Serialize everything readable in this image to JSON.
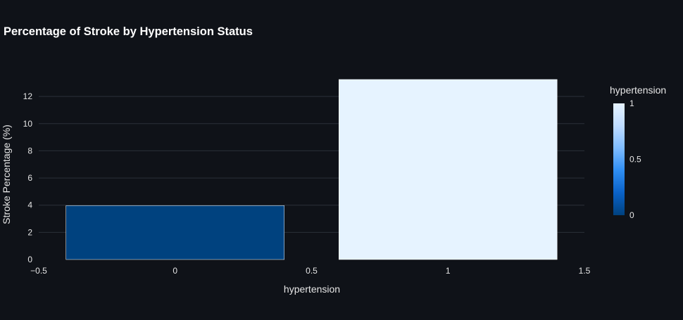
{
  "chart_data": {
    "type": "bar",
    "title": "Percentage of Stroke by Hypertension Status",
    "xlabel": "hypertension",
    "ylabel": "Stroke Percentage (%)",
    "x": [
      0,
      1
    ],
    "values": [
      3.97,
      13.25
    ],
    "xlim": [
      -0.5,
      1.5
    ],
    "ylim": [
      0,
      13.25
    ],
    "xticks": [
      -0.5,
      0,
      0.5,
      1,
      1.5
    ],
    "xtick_labels": [
      "−0.5",
      "0",
      "0.5",
      "1",
      "1.5"
    ],
    "yticks": [
      0,
      2,
      4,
      6,
      8,
      10,
      12
    ],
    "ytick_labels": [
      "0",
      "2",
      "4",
      "6",
      "8",
      "10",
      "12"
    ],
    "grid": true,
    "colorbar": {
      "title": "hypertension",
      "range": [
        0,
        1
      ],
      "tick_values": [
        0,
        0.5,
        1
      ],
      "tick_labels": [
        "0",
        "0.5",
        "1"
      ],
      "colorscale": [
        "#00427f",
        "#0a62c8",
        "#2f8ef3",
        "#7fbcff",
        "#bfdcff",
        "#e6f3ff"
      ]
    },
    "colors": {
      "background": "#0f1218",
      "grid": "#2b3039",
      "text": "#e6e6e6",
      "bar_stroke": "#ffffff"
    }
  }
}
